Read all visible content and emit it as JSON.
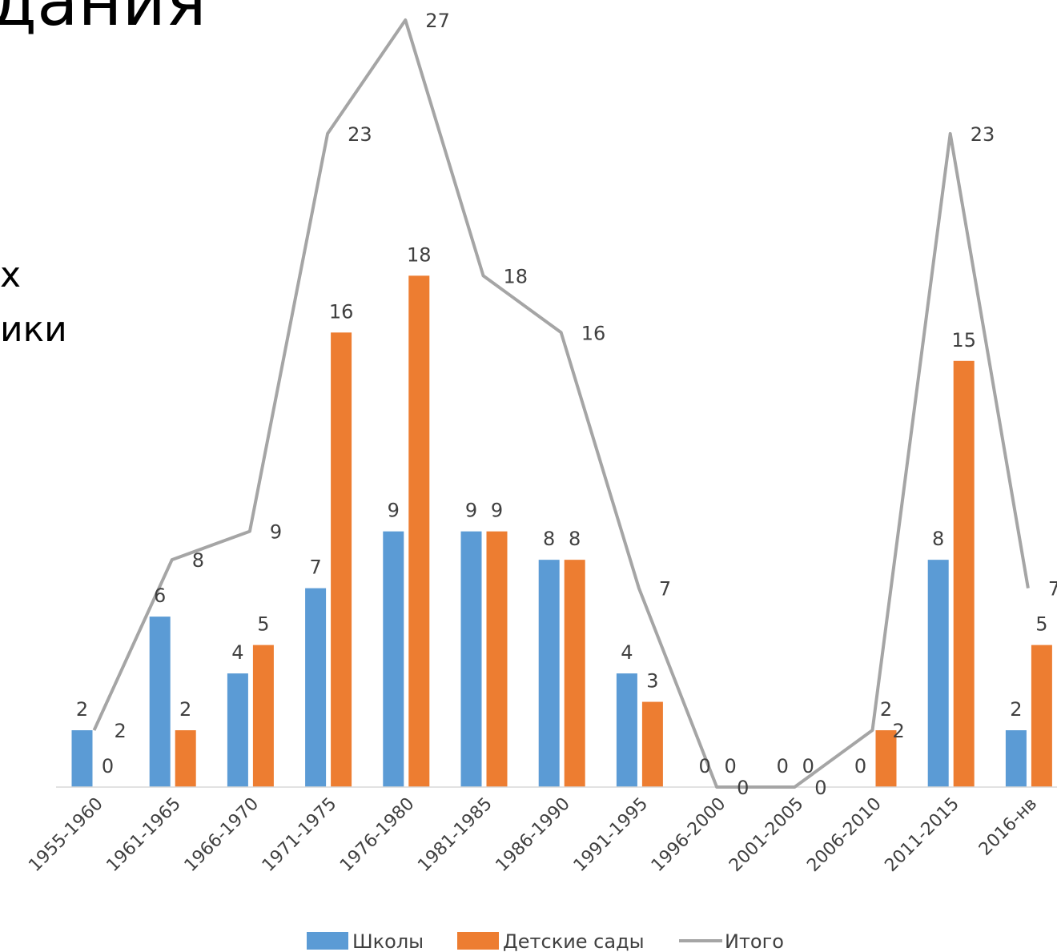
{
  "slide": {
    "title_fragment": "дания",
    "text_fragment_1": "х",
    "text_fragment_2": "ики"
  },
  "chart_data": {
    "type": "bar",
    "title": "",
    "xlabel": "",
    "ylabel": "",
    "ylim": [
      0,
      27
    ],
    "grid": false,
    "legend_position": "bottom",
    "categories": [
      "1955-1960",
      "1961-1965",
      "1966-1970",
      "1971-1975",
      "1976-1980",
      "1981-1985",
      "1986-1990",
      "1991-1995",
      "1996-2000",
      "2001-2005",
      "2006-2010",
      "2011-2015",
      "2016-нв"
    ],
    "series": [
      {
        "name": "Школы",
        "kind": "bar",
        "color": "#5B9BD5",
        "values": [
          2,
          6,
          4,
          7,
          9,
          9,
          8,
          4,
          0,
          0,
          0,
          8,
          2
        ]
      },
      {
        "name": "Детские сады",
        "kind": "bar",
        "color": "#ED7D31",
        "values": [
          0,
          2,
          5,
          16,
          18,
          9,
          8,
          3,
          0,
          0,
          2,
          15,
          5
        ]
      },
      {
        "name": "Итого",
        "kind": "line",
        "color": "#A5A5A5",
        "values": [
          2,
          8,
          9,
          23,
          27,
          18,
          16,
          7,
          0,
          0,
          2,
          23,
          7
        ]
      }
    ]
  }
}
